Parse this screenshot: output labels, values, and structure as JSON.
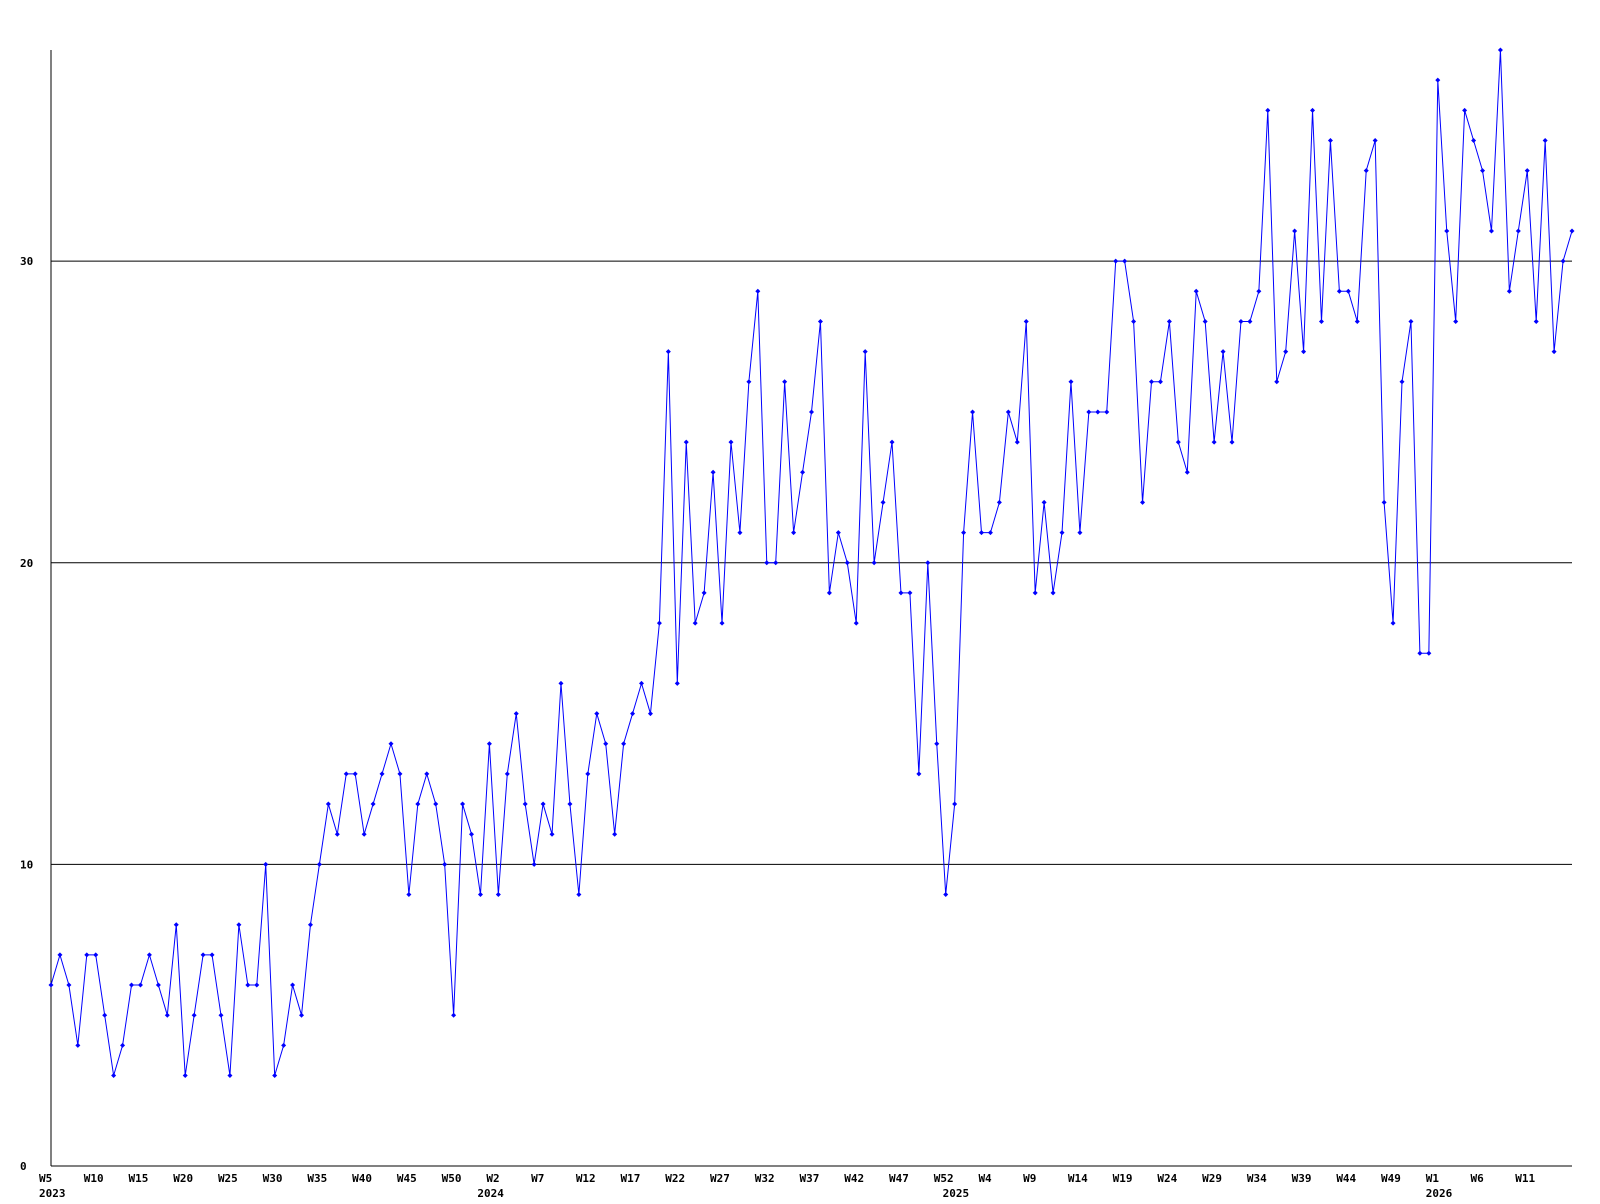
{
  "chart_data": {
    "type": "line",
    "color": "#0000ff",
    "grid": true,
    "ylim": [
      0,
      37
    ],
    "yticks": [
      0,
      10,
      20,
      30
    ],
    "values": [
      6,
      7,
      6,
      4,
      7,
      7,
      5,
      3,
      4,
      6,
      6,
      7,
      6,
      5,
      8,
      3,
      5,
      7,
      7,
      5,
      3,
      8,
      6,
      6,
      10,
      3,
      4,
      6,
      5,
      8,
      10,
      12,
      11,
      13,
      13,
      11,
      12,
      13,
      14,
      13,
      9,
      12,
      13,
      12,
      10,
      5,
      12,
      11,
      9,
      14,
      9,
      13,
      15,
      12,
      10,
      12,
      11,
      16,
      12,
      9,
      13,
      15,
      14,
      11,
      14,
      15,
      16,
      15,
      18,
      27,
      16,
      24,
      18,
      19,
      23,
      18,
      24,
      21,
      26,
      29,
      20,
      20,
      26,
      21,
      23,
      25,
      28,
      19,
      21,
      20,
      18,
      27,
      20,
      22,
      24,
      19,
      19,
      13,
      20,
      14,
      9,
      12,
      21,
      25,
      21,
      21,
      22,
      25,
      24,
      28,
      19,
      22,
      19,
      21,
      26,
      21,
      25,
      25,
      25,
      30,
      30,
      28,
      22,
      26,
      26,
      28,
      24,
      23,
      29,
      28,
      24,
      27,
      24,
      28,
      28,
      29,
      35,
      26,
      27,
      31,
      27,
      35,
      28,
      34,
      29,
      29,
      28,
      33,
      34,
      22,
      18,
      26,
      28,
      17,
      17,
      36,
      31,
      28,
      35,
      34,
      33,
      31,
      37,
      29,
      31,
      33,
      28,
      34,
      27,
      30,
      31
    ],
    "categories": [
      "W5",
      null,
      null,
      null,
      null,
      "W10",
      null,
      null,
      null,
      null,
      "W15",
      null,
      null,
      null,
      null,
      "W20",
      null,
      null,
      null,
      null,
      "W25",
      null,
      null,
      null,
      null,
      "W30",
      null,
      null,
      null,
      null,
      "W35",
      null,
      null,
      null,
      null,
      "W40",
      null,
      null,
      null,
      null,
      "W45",
      null,
      null,
      null,
      null,
      "W50",
      null,
      null,
      null,
      null,
      "W2",
      null,
      null,
      null,
      null,
      "W7",
      null,
      null,
      null,
      null,
      "W12",
      null,
      null,
      null,
      null,
      "W17",
      null,
      null,
      null,
      null,
      "W22",
      null,
      null,
      null,
      null,
      "W27",
      null,
      null,
      null,
      null,
      "W32",
      null,
      null,
      null,
      null,
      "W37",
      null,
      null,
      null,
      null,
      "W42",
      null,
      null,
      null,
      null,
      "W47",
      null,
      null,
      null,
      null,
      "W52",
      null,
      null,
      null,
      null,
      "W4",
      null,
      null,
      null,
      null,
      "W9",
      null,
      null,
      null,
      null,
      "W14",
      null,
      null,
      null,
      null,
      "W19",
      null,
      null,
      null,
      null,
      "W24",
      null,
      null,
      null,
      null,
      "W29",
      null,
      null,
      null,
      null,
      "W34",
      null,
      null,
      null,
      null,
      "W39",
      null,
      null,
      null,
      null,
      "W44",
      null,
      null,
      null,
      null,
      "W49",
      null,
      null,
      null,
      null,
      "W1",
      null,
      null,
      null,
      null,
      "W6",
      null,
      null,
      null,
      null,
      "W11",
      null,
      null,
      null,
      null,
      null
    ],
    "years": [
      "2023",
      null,
      null,
      null,
      null,
      null,
      null,
      null,
      null,
      null,
      null,
      null,
      null,
      null,
      null,
      null,
      null,
      null,
      null,
      null,
      null,
      null,
      null,
      null,
      null,
      null,
      null,
      null,
      null,
      null,
      null,
      null,
      null,
      null,
      null,
      null,
      null,
      null,
      null,
      null,
      null,
      null,
      null,
      null,
      null,
      null,
      null,
      null,
      null,
      "2024",
      null,
      null,
      null,
      null,
      null,
      null,
      null,
      null,
      null,
      null,
      null,
      null,
      null,
      null,
      null,
      null,
      null,
      null,
      null,
      null,
      null,
      null,
      null,
      null,
      null,
      null,
      null,
      null,
      null,
      null,
      null,
      null,
      null,
      null,
      null,
      null,
      null,
      null,
      null,
      null,
      null,
      null,
      null,
      null,
      null,
      null,
      null,
      null,
      null,
      null,
      null,
      "2025",
      null,
      null,
      null,
      null,
      null,
      null,
      null,
      null,
      null,
      null,
      null,
      null,
      null,
      null,
      null,
      null,
      null,
      null,
      null,
      null,
      null,
      null,
      null,
      null,
      null,
      null,
      null,
      null,
      null,
      null,
      null,
      null,
      null,
      null,
      null,
      null,
      null,
      null,
      null,
      null,
      null,
      null,
      null,
      null,
      null,
      null,
      null,
      null,
      null,
      null,
      null,
      null,
      null,
      "2026",
      null,
      null,
      null,
      null,
      null,
      null,
      null,
      null,
      null,
      null,
      null,
      null,
      null,
      null,
      null
    ]
  }
}
